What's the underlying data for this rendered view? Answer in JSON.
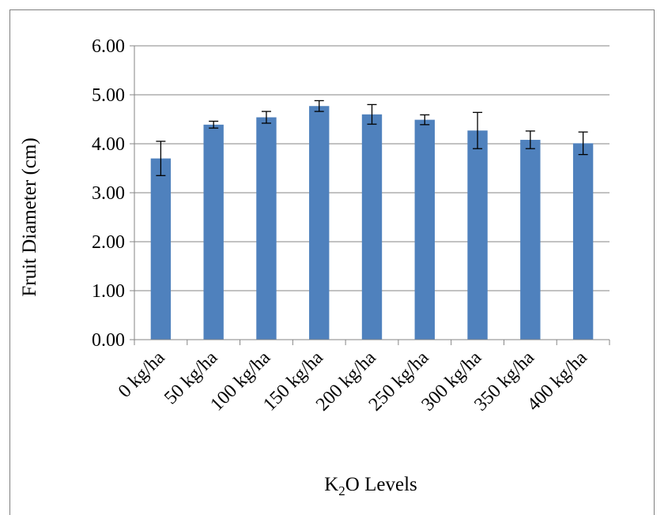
{
  "chart_data": {
    "type": "bar",
    "categories": [
      "0 kg/ha",
      "50 kg/ha",
      "100 kg/ha",
      "150 kg/ha",
      "200 kg/ha",
      "250 kg/ha",
      "300 kg/ha",
      "350 kg/ha",
      "400 kg/ha"
    ],
    "values": [
      3.7,
      4.39,
      4.54,
      4.77,
      4.6,
      4.49,
      4.27,
      4.08,
      4.01
    ],
    "error_bars": [
      0.35,
      0.07,
      0.12,
      0.11,
      0.2,
      0.1,
      0.37,
      0.18,
      0.23
    ],
    "ylabel": "Fruit Diameter (cm)",
    "xlabel": {
      "base": "K",
      "subscript": "2",
      "rest": "O Levels"
    },
    "ylim": [
      0,
      6
    ],
    "yticks": [
      "0.00",
      "1.00",
      "2.00",
      "3.00",
      "4.00",
      "5.00",
      "6.00"
    ],
    "grid": "horizontal",
    "legend": "none",
    "colors": {
      "bar": "#4f81bd",
      "grid": "#868686",
      "axis": "#868686",
      "error": "#000000"
    }
  }
}
